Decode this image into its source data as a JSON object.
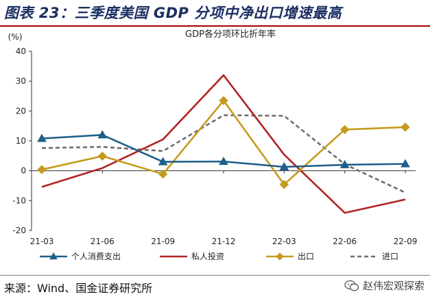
{
  "figure": {
    "title": "图表 23：三季度美国 GDP 分项中净出口增速最高",
    "source": "来源：Wind、国金证券研究所",
    "watermark": "赵伟宏观探索",
    "watermark_icon": "wechat-icon"
  },
  "chart_data": {
    "type": "line",
    "title": "GDP各分项环比折年率",
    "ylabel": "(%)",
    "xlabel": "",
    "ylim": [
      -20,
      40
    ],
    "yticks": [
      -20,
      -10,
      0,
      10,
      20,
      30,
      40
    ],
    "grid": false,
    "legend_position": "bottom",
    "x": [
      "21-03",
      "21-06",
      "21-09",
      "21-12",
      "22-03",
      "22-06",
      "22-09"
    ],
    "series": [
      {
        "name": "个人消费支出",
        "color": "#1f5f8b",
        "style": "solid",
        "marker": "triangle",
        "values": [
          10.8,
          12.0,
          3.0,
          3.1,
          1.3,
          2.0,
          2.3
        ]
      },
      {
        "name": "私人投资",
        "color": "#b22222",
        "style": "solid",
        "marker": "none",
        "values": [
          -5.4,
          0.9,
          10.5,
          32.0,
          5.4,
          -14.1,
          -9.6
        ]
      },
      {
        "name": "出口",
        "color": "#c49b1e",
        "style": "solid",
        "marker": "diamond",
        "values": [
          0.4,
          4.9,
          -1.1,
          23.5,
          -4.6,
          13.8,
          14.6
        ]
      },
      {
        "name": "进口",
        "color": "#6e6e6e",
        "style": "dashed",
        "marker": "none",
        "values": [
          7.6,
          8.0,
          6.6,
          18.6,
          18.4,
          2.2,
          -7.3
        ]
      }
    ]
  }
}
